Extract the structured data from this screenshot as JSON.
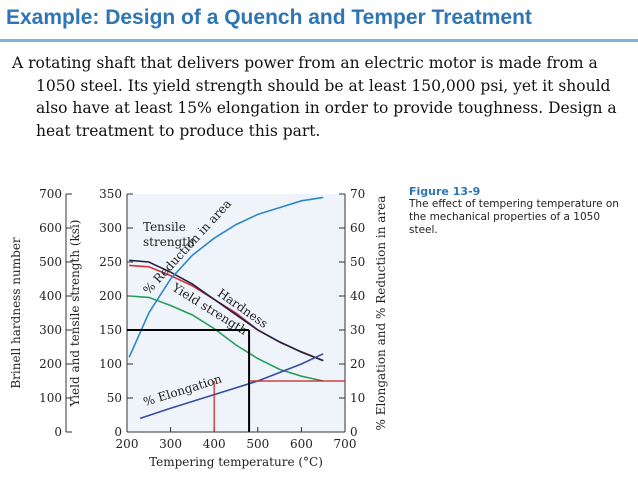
{
  "slide": {
    "title": "Example: Design of a Quench and Temper Treatment",
    "paragraph": "A rotating shaft that delivers power from an electric motor is made from a 1050 steel. Its yield strength should be at least 150,000 psi, yet it should also have at least 15% elongation in order to provide toughness. Design a heat treatment to produce this part."
  },
  "figure": {
    "number": "Figure 13-9",
    "caption": "The effect of tempering temperature on the mechanical properties of a 1050 steel."
  },
  "colors": {
    "title": "#2e75b6",
    "tensile": "#d8303a",
    "hardness": "#222244",
    "yield": "#2a9d5c",
    "reduction": "#2f86c9",
    "elongation": "#3a4aa0",
    "guides": "#cc1f1f",
    "graph_bg": "#eef4fa"
  },
  "chart_data": {
    "type": "line",
    "xlabel": "Tempering temperature (°C)",
    "xlim": [
      200,
      700
    ],
    "x_ticks": [
      "200",
      "300",
      "400",
      "500",
      "600",
      "700"
    ],
    "axes": {
      "brinell": {
        "label": "Brinell hardness number",
        "ticks": [
          "0",
          "100",
          "200",
          "300",
          "400",
          "500",
          "600",
          "700"
        ]
      },
      "strength": {
        "label": "Yield and tensile strength (ksi)",
        "ticks": [
          "0",
          "50",
          "100",
          "150",
          "200",
          "250",
          "300",
          "350"
        ]
      },
      "percent": {
        "label": "% Elongation and % Reduction in area",
        "ticks": [
          "0",
          "10",
          "20",
          "30",
          "40",
          "50",
          "60",
          "70"
        ]
      }
    },
    "series": [
      {
        "name": "Tensile strength",
        "label_lines": [
          "Tensile",
          "strength"
        ],
        "axis": "strength",
        "x": [
          205,
          250,
          300,
          350,
          400,
          450,
          500,
          550,
          600,
          650
        ],
        "y": [
          245,
          243,
          230,
          215,
          195,
          175,
          150,
          132,
          118,
          105
        ]
      },
      {
        "name": "Hardness",
        "axis": "brinell",
        "x": [
          205,
          250,
          300,
          350,
          400,
          450,
          500,
          550,
          600,
          650
        ],
        "y": [
          505,
          500,
          470,
          435,
          390,
          345,
          300,
          265,
          235,
          210
        ]
      },
      {
        "name": "Yield strength",
        "axis": "strength",
        "x": [
          205,
          250,
          300,
          350,
          400,
          450,
          500,
          550,
          600,
          650
        ],
        "y": [
          200,
          198,
          186,
          172,
          152,
          128,
          108,
          92,
          82,
          75
        ]
      },
      {
        "name": "% Reduction in area",
        "axis": "percent",
        "x": [
          205,
          250,
          300,
          350,
          400,
          450,
          500,
          550,
          600,
          650
        ],
        "y": [
          22,
          35,
          45,
          52,
          57,
          61,
          64,
          66,
          68,
          69
        ]
      },
      {
        "name": "% Elongation",
        "axis": "percent",
        "x": [
          230,
          300,
          400,
          500,
          600,
          650
        ],
        "y": [
          4,
          7,
          11,
          15,
          20,
          23
        ]
      }
    ],
    "guides": {
      "yield_requirement_ksi": 150,
      "elongation_requirement_pct": 15,
      "temperature_c": 480
    }
  }
}
